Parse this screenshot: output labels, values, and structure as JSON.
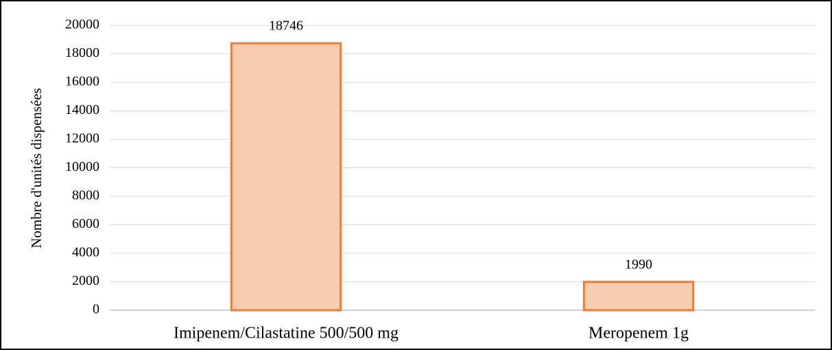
{
  "chart_data": {
    "type": "bar",
    "y_label": "Nombre d'unités dispensées",
    "categories": [
      "Imipenem/Cilastatine 500/500 mg",
      "Meropenem 1g"
    ],
    "values": [
      18746,
      1990
    ],
    "color": "#f8cbad",
    "edge_color": "#ed7d31",
    "ylim": [
      0,
      20000
    ],
    "yticks": [
      0,
      2000,
      4000,
      6000,
      8000,
      10000,
      12000,
      14000,
      16000,
      18000,
      20000
    ],
    "grid": true
  }
}
